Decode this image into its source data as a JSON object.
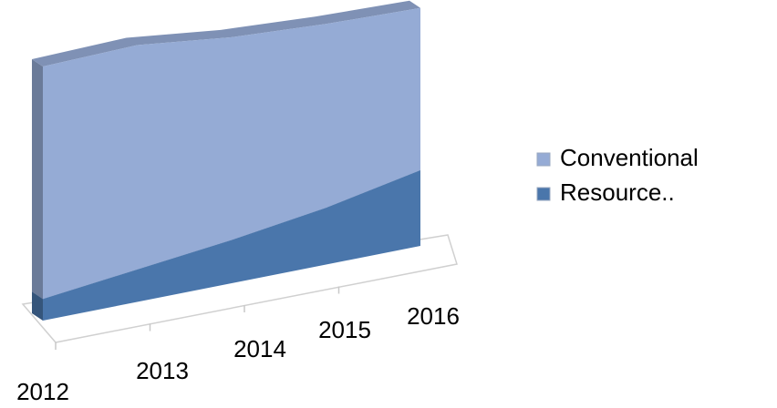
{
  "chart_data": {
    "type": "area3d",
    "categories": [
      "2012",
      "2013",
      "2014",
      "2015",
      "2016"
    ],
    "series": [
      {
        "name": "Resource..",
        "color": "#4a76ab",
        "values": [
          8,
          12,
          16,
          21,
          28
        ]
      },
      {
        "name": "Conventional",
        "color": "#95abd5",
        "values": [
          86,
          83,
          75,
          68,
          60
        ]
      }
    ],
    "legend": "right"
  }
}
